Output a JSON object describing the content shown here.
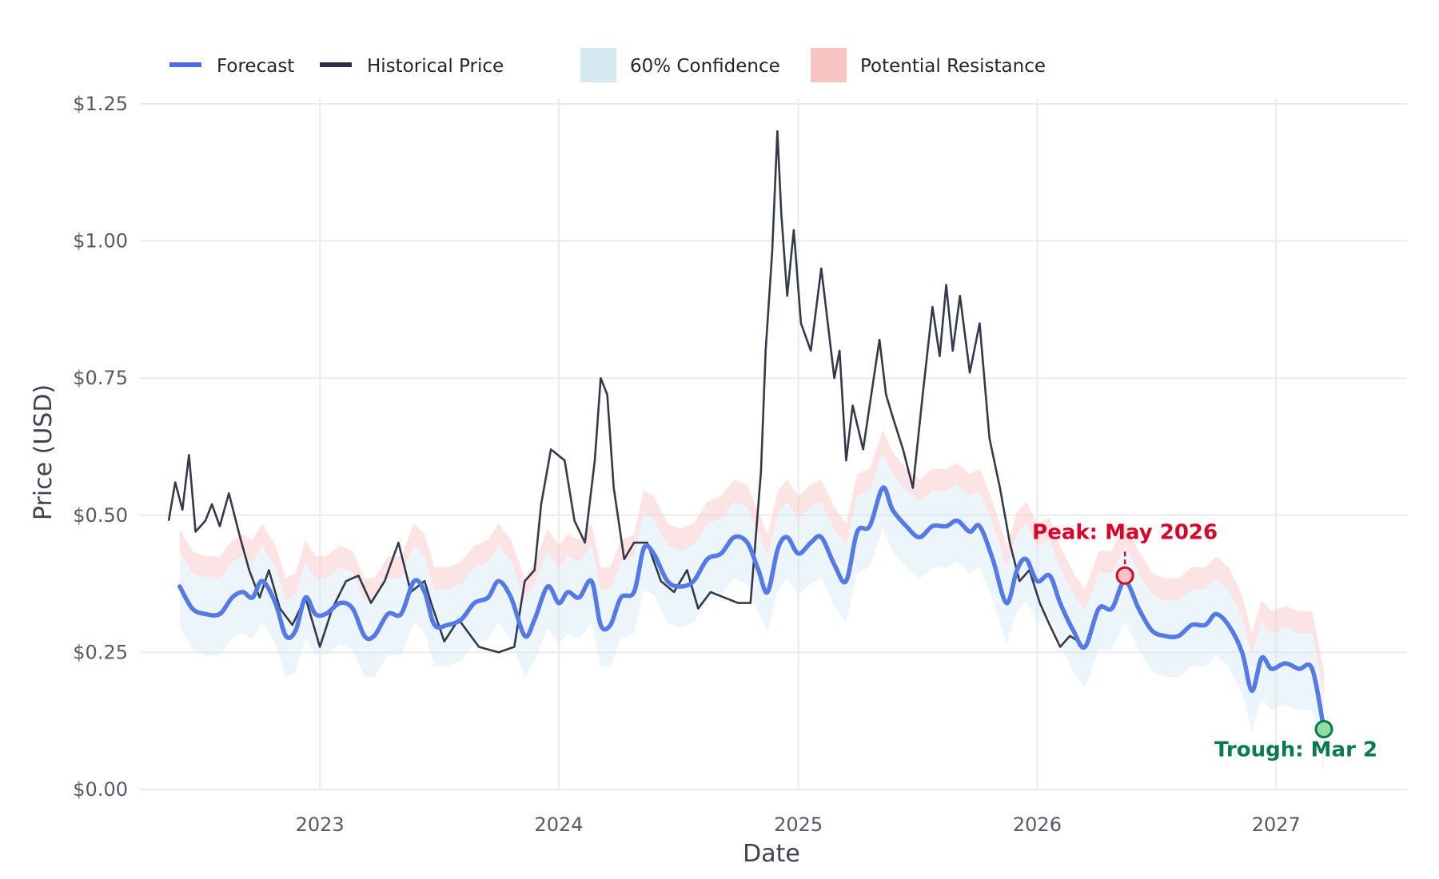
{
  "colors": {
    "forecast": "#5579e6",
    "historical": "#2a2e42",
    "confidence": "#d4e9f2",
    "resistance": "#f7c4c1",
    "peak": "#d90429",
    "trough": "#0a7a4f",
    "grid": "#ebebeb"
  },
  "legend": [
    {
      "label": "Forecast",
      "kind": "line",
      "color": "#4f69e8"
    },
    {
      "label": "Historical Price",
      "kind": "line",
      "color": "#2a2e42"
    },
    {
      "label": "60% Confidence",
      "kind": "box",
      "color": "#d4e9f2"
    },
    {
      "label": "Potential Resistance",
      "kind": "box",
      "color": "#f7c4c1"
    }
  ],
  "chart_data": {
    "type": "line",
    "xlabel": "Date",
    "ylabel": "Price (USD)",
    "xlim": [
      "2022-04-01",
      "2027-07-20"
    ],
    "ylim": [
      0,
      1.25
    ],
    "x_ticks": [
      "2023-01-01",
      "2024-01-01",
      "2025-01-01",
      "2026-01-01",
      "2027-01-01"
    ],
    "x_tick_labels": [
      "2023",
      "2024",
      "2025",
      "2026",
      "2027"
    ],
    "y_ticks": [
      0,
      0.25,
      0.5,
      0.75,
      1.0,
      1.25
    ],
    "y_tick_labels": [
      "$0.00",
      "$0.25",
      "$0.50",
      "$0.75",
      "$1.00",
      "$1.25"
    ],
    "grid": true,
    "legend_position": "top",
    "series": [
      {
        "name": "Historical Price",
        "x": [
          "2022-05-15",
          "2022-05-25",
          "2022-06-05",
          "2022-06-15",
          "2022-06-25",
          "2022-07-10",
          "2022-07-20",
          "2022-08-01",
          "2022-08-15",
          "2022-09-01",
          "2022-09-15",
          "2022-10-01",
          "2022-10-15",
          "2022-11-01",
          "2022-11-20",
          "2022-12-10",
          "2023-01-01",
          "2023-01-20",
          "2023-02-10",
          "2023-03-01",
          "2023-03-20",
          "2023-04-10",
          "2023-05-01",
          "2023-05-20",
          "2023-06-10",
          "2023-06-20",
          "2023-07-10",
          "2023-08-01",
          "2023-09-01",
          "2023-10-01",
          "2023-10-25",
          "2023-11-10",
          "2023-11-25",
          "2023-12-05",
          "2023-12-20",
          "2024-01-10",
          "2024-01-25",
          "2024-02-10",
          "2024-02-25",
          "2024-03-05",
          "2024-03-15",
          "2024-03-25",
          "2024-04-10",
          "2024-04-25",
          "2024-05-15",
          "2024-06-05",
          "2024-06-25",
          "2024-07-15",
          "2024-08-01",
          "2024-08-20",
          "2024-09-10",
          "2024-10-01",
          "2024-10-20",
          "2024-11-05",
          "2024-11-12",
          "2024-11-22",
          "2024-11-30",
          "2024-12-06",
          "2024-12-15",
          "2024-12-25",
          "2025-01-05",
          "2025-01-20",
          "2025-02-05",
          "2025-02-15",
          "2025-02-25",
          "2025-03-05",
          "2025-03-15",
          "2025-03-25",
          "2025-04-10",
          "2025-04-25",
          "2025-05-05",
          "2025-05-15",
          "2025-05-25",
          "2025-06-10",
          "2025-06-25",
          "2025-07-10",
          "2025-07-25",
          "2025-08-05",
          "2025-08-15",
          "2025-08-25",
          "2025-09-05",
          "2025-09-20",
          "2025-10-05",
          "2025-10-20",
          "2025-11-05",
          "2025-11-20",
          "2025-12-05",
          "2025-12-20",
          "2026-01-05",
          "2026-01-20",
          "2026-02-05",
          "2026-02-20",
          "2026-03-05"
        ],
        "y": [
          0.49,
          0.56,
          0.51,
          0.61,
          0.47,
          0.49,
          0.52,
          0.48,
          0.54,
          0.46,
          0.4,
          0.35,
          0.4,
          0.33,
          0.3,
          0.35,
          0.26,
          0.33,
          0.38,
          0.39,
          0.34,
          0.38,
          0.45,
          0.36,
          0.38,
          0.34,
          0.27,
          0.31,
          0.26,
          0.25,
          0.26,
          0.38,
          0.4,
          0.52,
          0.62,
          0.6,
          0.49,
          0.45,
          0.6,
          0.75,
          0.72,
          0.55,
          0.42,
          0.45,
          0.45,
          0.38,
          0.36,
          0.4,
          0.33,
          0.36,
          0.35,
          0.34,
          0.34,
          0.58,
          0.8,
          0.98,
          1.2,
          1.05,
          0.9,
          1.02,
          0.85,
          0.8,
          0.95,
          0.85,
          0.75,
          0.8,
          0.6,
          0.7,
          0.62,
          0.74,
          0.82,
          0.72,
          0.68,
          0.62,
          0.55,
          0.72,
          0.88,
          0.79,
          0.92,
          0.8,
          0.9,
          0.76,
          0.85,
          0.64,
          0.55,
          0.45,
          0.38,
          0.4,
          0.34,
          0.3,
          0.26,
          0.28,
          0.27
        ]
      },
      {
        "name": "Forecast",
        "x": [
          "2022-06-01",
          "2022-06-20",
          "2022-07-10",
          "2022-08-01",
          "2022-08-20",
          "2022-09-05",
          "2022-09-20",
          "2022-10-05",
          "2022-10-25",
          "2022-11-10",
          "2022-11-25",
          "2022-12-10",
          "2022-12-25",
          "2023-01-10",
          "2023-02-01",
          "2023-02-20",
          "2023-03-10",
          "2023-03-25",
          "2023-04-15",
          "2023-05-05",
          "2023-05-25",
          "2023-06-10",
          "2023-06-25",
          "2023-07-15",
          "2023-08-05",
          "2023-08-25",
          "2023-09-15",
          "2023-10-01",
          "2023-10-20",
          "2023-11-10",
          "2023-11-25",
          "2023-12-15",
          "2024-01-01",
          "2024-01-15",
          "2024-02-01",
          "2024-02-20",
          "2024-03-05",
          "2024-03-20",
          "2024-04-05",
          "2024-04-25",
          "2024-05-10",
          "2024-05-25",
          "2024-06-15",
          "2024-07-05",
          "2024-07-25",
          "2024-08-15",
          "2024-09-05",
          "2024-09-25",
          "2024-10-15",
          "2024-11-01",
          "2024-11-15",
          "2024-12-01",
          "2024-12-15",
          "2025-01-01",
          "2025-01-20",
          "2025-02-05",
          "2025-02-25",
          "2025-03-15",
          "2025-04-01",
          "2025-04-20",
          "2025-05-10",
          "2025-05-25",
          "2025-06-15",
          "2025-07-05",
          "2025-07-25",
          "2025-08-15",
          "2025-09-01",
          "2025-09-20",
          "2025-10-05",
          "2025-10-25",
          "2025-11-15",
          "2025-12-01",
          "2025-12-15",
          "2026-01-01",
          "2026-01-20",
          "2026-02-05",
          "2026-02-25",
          "2026-03-15",
          "2026-04-05",
          "2026-04-25",
          "2026-05-15",
          "2026-06-05",
          "2026-06-25",
          "2026-07-15",
          "2026-08-05",
          "2026-08-25",
          "2026-09-15",
          "2026-10-01",
          "2026-10-20",
          "2026-11-10",
          "2026-11-25",
          "2026-12-10",
          "2026-12-25",
          "2027-01-15",
          "2027-02-05",
          "2027-02-25",
          "2027-03-15"
        ],
        "y": [
          0.37,
          0.33,
          0.32,
          0.32,
          0.35,
          0.36,
          0.35,
          0.38,
          0.34,
          0.28,
          0.29,
          0.35,
          0.32,
          0.32,
          0.34,
          0.33,
          0.28,
          0.28,
          0.32,
          0.32,
          0.38,
          0.36,
          0.3,
          0.3,
          0.31,
          0.34,
          0.35,
          0.38,
          0.35,
          0.28,
          0.31,
          0.37,
          0.34,
          0.36,
          0.35,
          0.38,
          0.3,
          0.3,
          0.35,
          0.36,
          0.44,
          0.43,
          0.38,
          0.37,
          0.38,
          0.42,
          0.43,
          0.46,
          0.45,
          0.4,
          0.36,
          0.44,
          0.46,
          0.43,
          0.45,
          0.46,
          0.41,
          0.38,
          0.47,
          0.48,
          0.55,
          0.51,
          0.48,
          0.46,
          0.48,
          0.48,
          0.49,
          0.47,
          0.48,
          0.42,
          0.34,
          0.4,
          0.42,
          0.38,
          0.39,
          0.34,
          0.29,
          0.26,
          0.33,
          0.33,
          0.38,
          0.33,
          0.29,
          0.28,
          0.28,
          0.3,
          0.3,
          0.32,
          0.3,
          0.25,
          0.18,
          0.24,
          0.22,
          0.23,
          0.22,
          0.22,
          0.11
        ]
      }
    ],
    "confidence_band_label": "60% Confidence",
    "resistance_band_label": "Potential Resistance",
    "annotations": [
      {
        "type": "peak",
        "text": "Peak: May 2026",
        "x": "2026-05-15",
        "y": 0.39
      },
      {
        "type": "trough",
        "text": "Trough: Mar 2",
        "x": "2027-03-15",
        "y": 0.11
      }
    ]
  }
}
